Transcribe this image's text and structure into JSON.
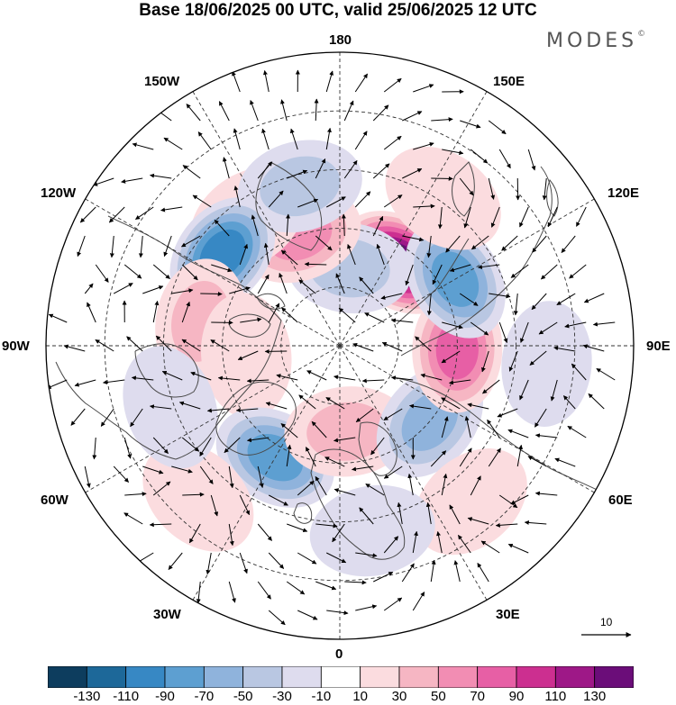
{
  "header": {
    "title": "Base 18/06/2025 00 UTC, valid 25/06/2025 12 UTC",
    "brand": "MODES",
    "brand_mark": "©"
  },
  "map": {
    "projection": "polar-stereographic-north",
    "longitude_labels": [
      "180",
      "150E",
      "120E",
      "90E",
      "60E",
      "30E",
      "0",
      "30W",
      "60W",
      "90W",
      "120W",
      "150W"
    ],
    "colors": {
      "land_outline": "#4a4a4a",
      "graticule": "#333333",
      "arrow": "#000000"
    },
    "anomalies": [
      {
        "lon": 145,
        "colat": 26,
        "value": 140
      },
      {
        "lon": 173,
        "colat": 20,
        "value": -40
      },
      {
        "lon": -160,
        "colat": 30,
        "value": 65
      },
      {
        "lon": -144,
        "colat": 40,
        "value": 25
      },
      {
        "lon": -166,
        "colat": 42,
        "value": -40
      },
      {
        "lon": -128,
        "colat": 38,
        "value": -90
      },
      {
        "lon": -100,
        "colat": 36,
        "value": 40
      },
      {
        "lon": -84,
        "colat": 24,
        "value": 25
      },
      {
        "lon": -30,
        "colat": 33,
        "value": -70
      },
      {
        "lon": 5,
        "colat": 22,
        "value": 35
      },
      {
        "lon": 50,
        "colat": 30,
        "value": -65
      },
      {
        "lon": 88,
        "colat": 30,
        "value": 75
      },
      {
        "lon": 120,
        "colat": 34,
        "value": -70
      },
      {
        "lon": -43,
        "colat": 53,
        "value": 25
      },
      {
        "lon": 40,
        "colat": 52,
        "value": 22
      },
      {
        "lon": 85,
        "colat": 53,
        "value": -18
      },
      {
        "lon": 145,
        "colat": 46,
        "value": 25
      },
      {
        "lon": 10,
        "colat": 48,
        "value": -25
      },
      {
        "lon": -70,
        "colat": 46,
        "value": -20
      }
    ]
  },
  "wind_reference": {
    "label": "10"
  },
  "legend": {
    "levels": [
      -150,
      -130,
      -110,
      -90,
      -70,
      -50,
      -30,
      -10,
      10,
      30,
      50,
      70,
      90,
      110,
      130,
      150
    ],
    "tick_labels": [
      "-130",
      "-110",
      "-90",
      "-70",
      "-50",
      "-30",
      "-10",
      "10",
      "30",
      "50",
      "70",
      "90",
      "110",
      "130"
    ],
    "colors": [
      "#0d3d5e",
      "#1d6899",
      "#3788c4",
      "#5d9fd1",
      "#8fb3dc",
      "#b9c7e2",
      "#dedcee",
      "#ffffff",
      "#fbdcdf",
      "#f6b6c3",
      "#f28db3",
      "#e75fa5",
      "#cc2f90",
      "#9e1887",
      "#6b0d79"
    ]
  }
}
